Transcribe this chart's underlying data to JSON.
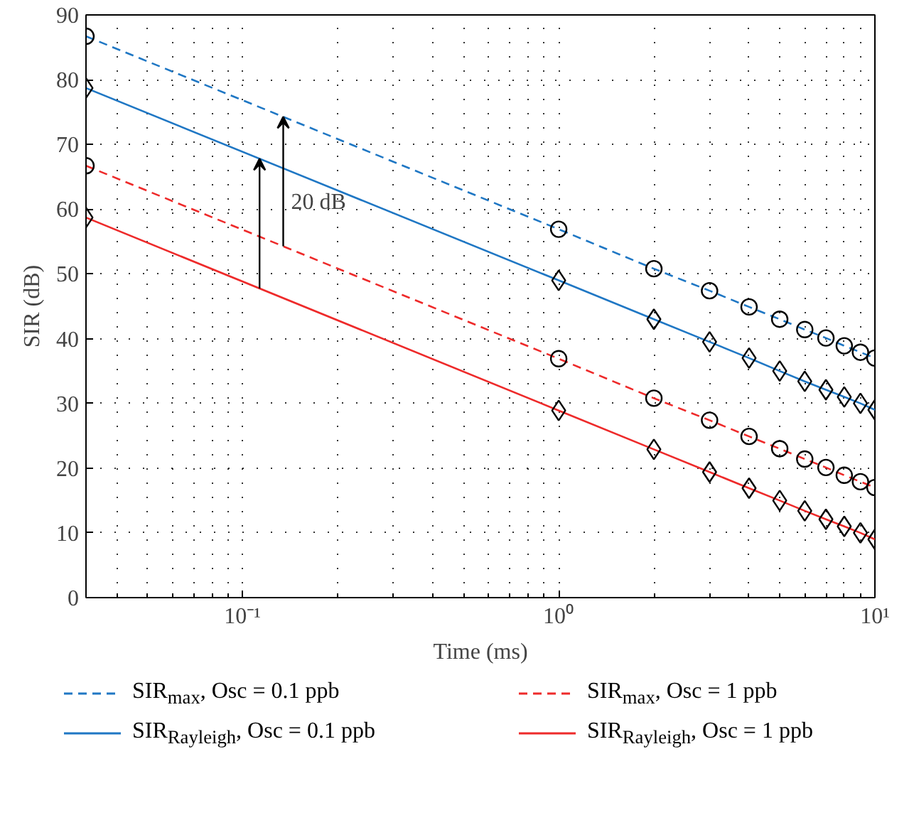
{
  "chart_data": {
    "type": "line",
    "xlabel": "Time (ms)",
    "ylabel": "SIR (dB)",
    "log": "x",
    "x": [
      0.032,
      1,
      2,
      3,
      4,
      5,
      6,
      7,
      8,
      9,
      10
    ],
    "series": [
      {
        "name": "SIR$_{max}$, Osc = 0.1 ppb",
        "color": "#1f77c4",
        "marker": "circle",
        "line_style": "dashed",
        "values": [
          86.7,
          56.9,
          50.8,
          47.4,
          44.9,
          43.0,
          41.4,
          40.1,
          38.9,
          37.9,
          37.0
        ]
      },
      {
        "name": "SIR$_{Rayleigh}$, Osc = 0.1 ppb",
        "color": "#1f77c4",
        "marker": "diamond",
        "line_style": "solid",
        "values": [
          78.7,
          49.0,
          43.0,
          39.5,
          37.0,
          35.0,
          33.4,
          32.1,
          31.0,
          30.0,
          29.0
        ]
      },
      {
        "name": "SIR$_{max}$, Osc = 1 ppb",
        "color": "#ee2a2a",
        "marker": "circle",
        "line_style": "dashed",
        "values": [
          66.7,
          36.9,
          30.8,
          27.4,
          24.9,
          23.0,
          21.4,
          20.1,
          18.9,
          17.9,
          17.0
        ]
      },
      {
        "name": "SIR$_{Rayleigh}$, Osc = 1 ppb",
        "color": "#ee2a2a",
        "marker": "diamond",
        "line_style": "solid",
        "values": [
          58.7,
          28.9,
          22.9,
          19.4,
          16.9,
          15.0,
          13.4,
          12.1,
          11.0,
          10.0,
          9.0
        ]
      }
    ],
    "xlim": [
      0.032,
      10
    ],
    "ylim": [
      0,
      90
    ],
    "xticks": [
      {
        "value": 0.1,
        "label": "10⁻¹"
      },
      {
        "value": 1,
        "label": "10⁰"
      },
      {
        "value": 10,
        "label": "10¹"
      }
    ],
    "yticks": [
      0,
      10,
      20,
      30,
      40,
      50,
      60,
      70,
      80,
      90
    ],
    "annotations": [
      "20 dB"
    ],
    "grid": true,
    "legend": "bottom"
  }
}
